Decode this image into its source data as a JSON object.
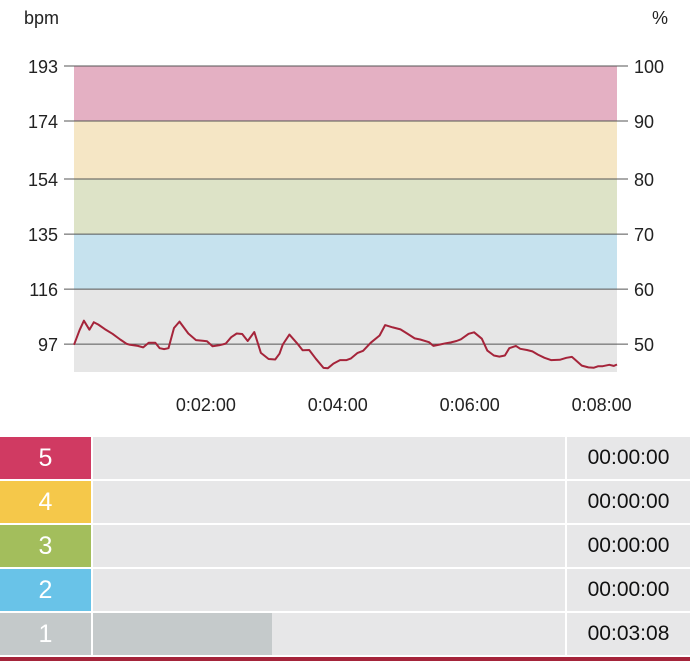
{
  "chart_data": {
    "type": "line",
    "left_axis_unit": "bpm",
    "right_axis_unit": "%",
    "left_ticks": [
      "193",
      "174",
      "154",
      "135",
      "116",
      "97"
    ],
    "right_ticks": [
      "100",
      "90",
      "80",
      "70",
      "60",
      "50"
    ],
    "x_tick_labels": [
      "0:02:00",
      "0:04:00",
      "0:06:00",
      "0:08:00"
    ],
    "x_ticks_seconds": [
      120,
      240,
      360,
      480
    ],
    "xlim_seconds": [
      0,
      494
    ],
    "ylim_bpm": [
      87.4,
      193
    ],
    "zone_bands": [
      {
        "from": 174,
        "to": 193,
        "color": "#e4b0c3"
      },
      {
        "from": 154,
        "to": 174,
        "color": "#f5e6c5"
      },
      {
        "from": 135,
        "to": 154,
        "color": "#dde3c7"
      },
      {
        "from": 116,
        "to": 135,
        "color": "#c6e2ee"
      },
      {
        "from": 87.4,
        "to": 116,
        "color": "#e6e6e6"
      }
    ],
    "line_color": "#a5243a",
    "series": [
      {
        "x": [
          0,
          5,
          9,
          14,
          18,
          22,
          28,
          35,
          42,
          48,
          51,
          58,
          63,
          68,
          74,
          78,
          82,
          86,
          91,
          96,
          104,
          111,
          117,
          121,
          126,
          132,
          138,
          143,
          148,
          153,
          158,
          164,
          170,
          177,
          183,
          187,
          190,
          196,
          203,
          208,
          214,
          220,
          227,
          231,
          236,
          242,
          248,
          252,
          258,
          263,
          270,
          278,
          283,
          290,
          297,
          303,
          310,
          315,
          323,
          327,
          333,
          338,
          343,
          348,
          352,
          359,
          364,
          371,
          376,
          382,
          387,
          392,
          396,
          402,
          406,
          412,
          417,
          422,
          428,
          434,
          442,
          448,
          453,
          456,
          462,
          468,
          473,
          477,
          481,
          487,
          491,
          494
        ],
        "y": [
          96.8,
          101.8,
          105.1,
          102.0,
          104.6,
          103.8,
          102.2,
          100.6,
          98.6,
          97.1,
          96.8,
          96.4,
          95.9,
          97.5,
          97.5,
          95.6,
          95.3,
          95.6,
          102.6,
          104.8,
          100.7,
          98.4,
          98.2,
          98.0,
          96.3,
          96.6,
          97.2,
          99.4,
          100.7,
          100.5,
          98.1,
          101.2,
          94.0,
          91.9,
          91.7,
          93.7,
          96.9,
          100.3,
          97.3,
          94.9,
          95.0,
          92.0,
          88.8,
          88.7,
          90.3,
          91.5,
          91.5,
          92.1,
          94.0,
          94.7,
          97.5,
          100.0,
          103.6,
          102.8,
          102.1,
          100.7,
          99.0,
          98.6,
          97.7,
          96.4,
          96.9,
          97.3,
          97.6,
          98.1,
          98.7,
          100.6,
          101.1,
          98.9,
          94.8,
          93.1,
          92.7,
          93.1,
          95.6,
          96.4,
          95.4,
          95.0,
          94.5,
          93.4,
          92.3,
          91.5,
          91.6,
          92.3,
          92.6,
          91.6,
          89.6,
          89.0,
          88.9,
          89.4,
          89.4,
          89.9,
          89.5,
          90.0
        ]
      }
    ]
  },
  "zones": [
    {
      "number": "5",
      "color": "#d03a62",
      "time": "00:00:00",
      "fraction": 0
    },
    {
      "number": "4",
      "color": "#f5c84a",
      "time": "00:00:00",
      "fraction": 0
    },
    {
      "number": "3",
      "color": "#a3be5c",
      "time": "00:00:00",
      "fraction": 0
    },
    {
      "number": "2",
      "color": "#69c3e8",
      "time": "00:00:00",
      "fraction": 0
    },
    {
      "number": "1",
      "color": "#c4c9ca",
      "time": "00:03:08",
      "fraction": 0.38
    }
  ]
}
